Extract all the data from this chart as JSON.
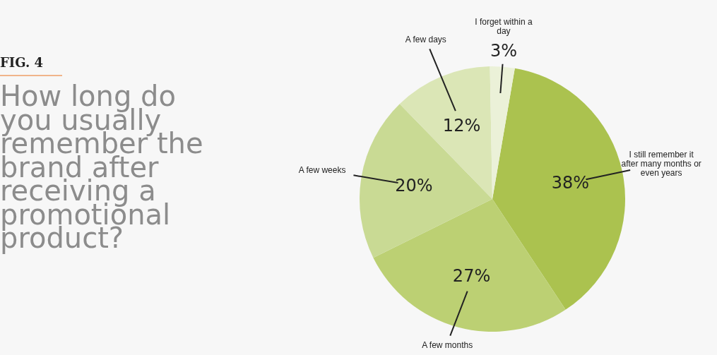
{
  "chart_data": {
    "type": "pie",
    "subtitle": "FIG. 4",
    "title": "How long do you usually remember the brand after receiving a promotional product?",
    "categories": [
      "I still remember it after many months or even years",
      "A few months",
      "A few weeks",
      "A few days",
      "I forget within a day"
    ],
    "values": [
      38,
      27,
      20,
      12,
      3
    ],
    "value_labels": [
      "38%",
      "27%",
      "20%",
      "12%",
      "3%"
    ],
    "colors": [
      "#abc24f",
      "#bcd073",
      "#c9da94",
      "#dbe6b6",
      "#ebf1d8"
    ]
  }
}
